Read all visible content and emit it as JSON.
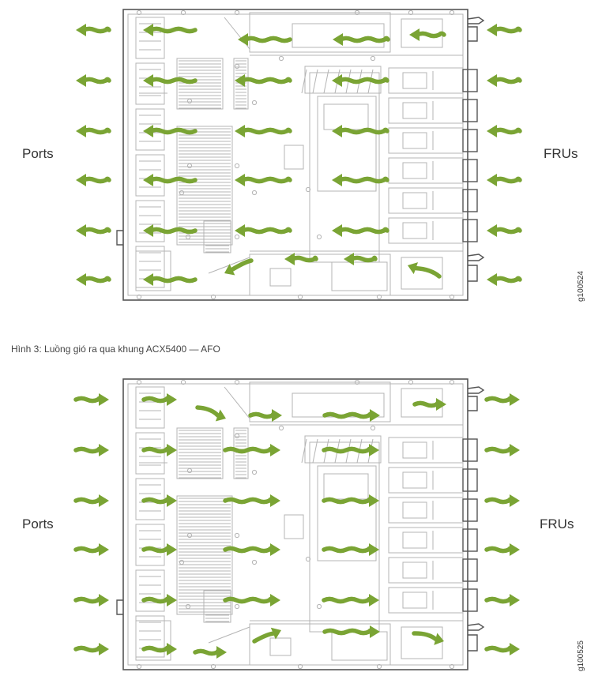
{
  "colors": {
    "arrow": "#7aa434",
    "line": "#b4b4b4",
    "frame": "#555555"
  },
  "figures": [
    {
      "left_label": "Ports",
      "right_label": "FRUs",
      "figure_id": "g100524",
      "airflow_direction": "right-to-left",
      "arrow_icon": "wavy-arrow-left-icon"
    },
    {
      "caption": "Hình 3: Luồng gió ra qua khung ACX5400 — AFO",
      "left_label": "Ports",
      "right_label": "FRUs",
      "figure_id": "g100525",
      "airflow_direction": "left-to-right",
      "arrow_icon": "wavy-arrow-right-icon"
    }
  ]
}
